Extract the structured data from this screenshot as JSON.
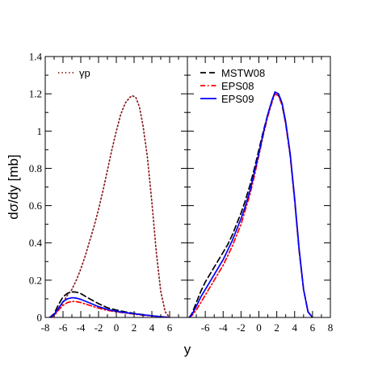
{
  "chart_data": [
    {
      "type": "line",
      "panel": "left",
      "ylabel": "dσ/dy [mb]",
      "xlim": [
        -8,
        8
      ],
      "ylim": [
        0,
        1.4
      ],
      "x_ticks": [
        "-8",
        "-6",
        "-4",
        "-2",
        "0",
        "2",
        "4",
        "6"
      ],
      "y_ticks": [
        "0",
        "0.2",
        "0.4",
        "0.6",
        "0.8",
        "1",
        "1.2",
        "1.4"
      ],
      "grid": false,
      "legend_position": "top-left",
      "series": [
        {
          "name": "γp",
          "color": "#8b1a1a",
          "dash": "dotted",
          "points": [
            [
              -7.5,
              0
            ],
            [
              -7,
              0.01
            ],
            [
              -6.5,
              0.04
            ],
            [
              -6,
              0.08
            ],
            [
              -5.5,
              0.12
            ],
            [
              -5,
              0.15
            ],
            [
              -4.5,
              0.2
            ],
            [
              -4,
              0.26
            ],
            [
              -3.5,
              0.33
            ],
            [
              -3,
              0.41
            ],
            [
              -2.5,
              0.49
            ],
            [
              -2,
              0.58
            ],
            [
              -1.5,
              0.68
            ],
            [
              -1,
              0.79
            ],
            [
              -0.5,
              0.9
            ],
            [
              0,
              1.0
            ],
            [
              0.5,
              1.09
            ],
            [
              1,
              1.15
            ],
            [
              1.5,
              1.18
            ],
            [
              1.8,
              1.19
            ],
            [
              2.2,
              1.18
            ],
            [
              2.6,
              1.13
            ],
            [
              3,
              1.03
            ],
            [
              3.5,
              0.86
            ],
            [
              4,
              0.62
            ],
            [
              4.5,
              0.35
            ],
            [
              5,
              0.14
            ],
            [
              5.5,
              0.03
            ],
            [
              6,
              0.0
            ]
          ]
        },
        {
          "name": "MSTW08",
          "color": "#000000",
          "dash": "dashed",
          "points": [
            [
              -7.5,
              0
            ],
            [
              -7,
              0.02
            ],
            [
              -6.5,
              0.07
            ],
            [
              -6,
              0.11
            ],
            [
              -5.5,
              0.13
            ],
            [
              -5,
              0.137
            ],
            [
              -4.5,
              0.136
            ],
            [
              -4,
              0.128
            ],
            [
              -3,
              0.1
            ],
            [
              -2,
              0.074
            ],
            [
              -1,
              0.052
            ],
            [
              0,
              0.04
            ],
            [
              1,
              0.03
            ],
            [
              2,
              0.022
            ],
            [
              3,
              0.015
            ],
            [
              4,
              0.009
            ],
            [
              5,
              0.004
            ],
            [
              6,
              0.0
            ]
          ]
        },
        {
          "name": "EPS08",
          "color": "#ff0000",
          "dash": "dashdot",
          "points": [
            [
              -7.5,
              0
            ],
            [
              -7,
              0.01
            ],
            [
              -6.5,
              0.04
            ],
            [
              -6,
              0.065
            ],
            [
              -5.5,
              0.08
            ],
            [
              -5,
              0.086
            ],
            [
              -4.5,
              0.085
            ],
            [
              -4,
              0.08
            ],
            [
              -3,
              0.065
            ],
            [
              -2,
              0.05
            ],
            [
              -1,
              0.038
            ],
            [
              0,
              0.03
            ],
            [
              1,
              0.024
            ],
            [
              2,
              0.018
            ],
            [
              3,
              0.012
            ],
            [
              4,
              0.008
            ],
            [
              5,
              0.004
            ],
            [
              6,
              0.0
            ]
          ]
        },
        {
          "name": "EPS09",
          "color": "#0000ff",
          "dash": "solid",
          "points": [
            [
              -7.5,
              0
            ],
            [
              -7,
              0.015
            ],
            [
              -6.5,
              0.05
            ],
            [
              -6,
              0.085
            ],
            [
              -5.5,
              0.1
            ],
            [
              -5,
              0.106
            ],
            [
              -4.5,
              0.104
            ],
            [
              -4,
              0.097
            ],
            [
              -3,
              0.078
            ],
            [
              -2,
              0.058
            ],
            [
              -1,
              0.043
            ],
            [
              0,
              0.033
            ],
            [
              1,
              0.026
            ],
            [
              2,
              0.02
            ],
            [
              3,
              0.014
            ],
            [
              4,
              0.009
            ],
            [
              5,
              0.004
            ],
            [
              6,
              0.0
            ]
          ]
        }
      ],
      "legend": [
        {
          "label": "γp",
          "color": "#8b1a1a",
          "dash": "dotted"
        }
      ]
    },
    {
      "type": "line",
      "panel": "right",
      "xlim": [
        -8,
        8
      ],
      "ylim": [
        0,
        1.4
      ],
      "x_ticks": [
        "-6",
        "-4",
        "-2",
        "0",
        "2",
        "4",
        "6",
        "8"
      ],
      "grid": false,
      "legend_position": "top-left",
      "series": [
        {
          "name": "MSTW08",
          "color": "#000000",
          "dash": "dashed",
          "points": [
            [
              -7.8,
              0
            ],
            [
              -7.5,
              0.02
            ],
            [
              -7,
              0.08
            ],
            [
              -6.5,
              0.14
            ],
            [
              -6,
              0.19
            ],
            [
              -5.5,
              0.23
            ],
            [
              -5,
              0.27
            ],
            [
              -4.5,
              0.31
            ],
            [
              -4,
              0.35
            ],
            [
              -3.5,
              0.39
            ],
            [
              -3,
              0.44
            ],
            [
              -2.5,
              0.5
            ],
            [
              -2,
              0.56
            ],
            [
              -1.5,
              0.63
            ],
            [
              -1,
              0.71
            ],
            [
              -0.5,
              0.8
            ],
            [
              0,
              0.9
            ],
            [
              0.5,
              1.0
            ],
            [
              1,
              1.09
            ],
            [
              1.5,
              1.17
            ],
            [
              1.8,
              1.2
            ],
            [
              2.2,
              1.19
            ],
            [
              2.6,
              1.14
            ],
            [
              3,
              1.04
            ],
            [
              3.5,
              0.87
            ],
            [
              4,
              0.63
            ],
            [
              4.5,
              0.36
            ],
            [
              5,
              0.15
            ],
            [
              5.5,
              0.03
            ],
            [
              6,
              0.0
            ]
          ]
        },
        {
          "name": "EPS08",
          "color": "#ff0000",
          "dash": "dashdot",
          "points": [
            [
              -7.8,
              0
            ],
            [
              -7.5,
              0.01
            ],
            [
              -7,
              0.04
            ],
            [
              -6.5,
              0.08
            ],
            [
              -6,
              0.12
            ],
            [
              -5.5,
              0.16
            ],
            [
              -5,
              0.2
            ],
            [
              -4.5,
              0.24
            ],
            [
              -4,
              0.28
            ],
            [
              -3.5,
              0.33
            ],
            [
              -3,
              0.38
            ],
            [
              -2.5,
              0.44
            ],
            [
              -2,
              0.5
            ],
            [
              -1.5,
              0.58
            ],
            [
              -1,
              0.66
            ],
            [
              -0.5,
              0.76
            ],
            [
              0,
              0.87
            ],
            [
              0.5,
              0.98
            ],
            [
              1,
              1.08
            ],
            [
              1.5,
              1.16
            ],
            [
              1.8,
              1.2
            ],
            [
              2.2,
              1.19
            ],
            [
              2.6,
              1.14
            ],
            [
              3,
              1.04
            ],
            [
              3.5,
              0.87
            ],
            [
              4,
              0.63
            ],
            [
              4.5,
              0.36
            ],
            [
              5,
              0.15
            ],
            [
              5.5,
              0.03
            ],
            [
              6,
              0.0
            ]
          ]
        },
        {
          "name": "EPS09",
          "color": "#0000ff",
          "dash": "solid",
          "points": [
            [
              -7.8,
              0
            ],
            [
              -7.5,
              0.015
            ],
            [
              -7,
              0.06
            ],
            [
              -6.5,
              0.11
            ],
            [
              -6,
              0.15
            ],
            [
              -5.5,
              0.19
            ],
            [
              -5,
              0.23
            ],
            [
              -4.5,
              0.27
            ],
            [
              -4,
              0.31
            ],
            [
              -3.5,
              0.36
            ],
            [
              -3,
              0.41
            ],
            [
              -2.5,
              0.47
            ],
            [
              -2,
              0.53
            ],
            [
              -1.5,
              0.6
            ],
            [
              -1,
              0.68
            ],
            [
              -0.5,
              0.78
            ],
            [
              0,
              0.88
            ],
            [
              0.5,
              0.99
            ],
            [
              1,
              1.09
            ],
            [
              1.5,
              1.17
            ],
            [
              1.8,
              1.21
            ],
            [
              2.2,
              1.2
            ],
            [
              2.6,
              1.15
            ],
            [
              3,
              1.05
            ],
            [
              3.5,
              0.88
            ],
            [
              4,
              0.64
            ],
            [
              4.5,
              0.37
            ],
            [
              5,
              0.15
            ],
            [
              5.5,
              0.03
            ],
            [
              6,
              0.0
            ]
          ]
        }
      ],
      "legend": [
        {
          "label": "MSTW08",
          "color": "#000000",
          "dash": "dashed"
        },
        {
          "label": "EPS08",
          "color": "#ff0000",
          "dash": "dashdot"
        },
        {
          "label": "EPS09",
          "color": "#0000ff",
          "dash": "solid"
        }
      ]
    }
  ],
  "xlabel": "y"
}
